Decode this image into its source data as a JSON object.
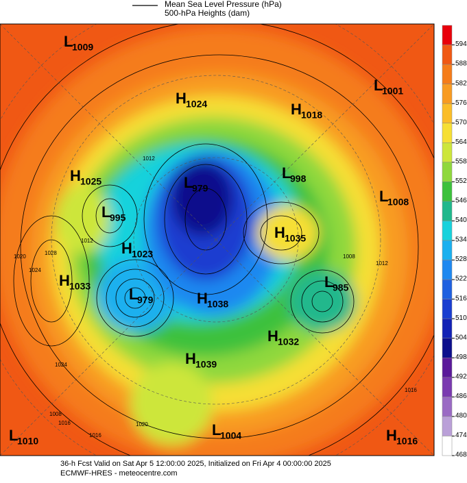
{
  "header": {
    "legend_line": "Mean Sea Level Pressure (hPa)",
    "legend_fill": "500-hPa Heights (dam)"
  },
  "colorbar": {
    "ticks": [
      594,
      588,
      582,
      576,
      570,
      564,
      558,
      552,
      546,
      540,
      534,
      528,
      522,
      516,
      510,
      504,
      498,
      492,
      486,
      480,
      474,
      468
    ],
    "colors": [
      "#e8000b",
      "#f05814",
      "#f57c1a",
      "#f89b22",
      "#fbbd28",
      "#f6df34",
      "#cde63b",
      "#8fd83d",
      "#3cc13c",
      "#20b88c",
      "#18d2dc",
      "#1ab0ef",
      "#1f88f0",
      "#1f60e0",
      "#1a3ed0",
      "#1222b5",
      "#0c0f8c",
      "#5a1a9a",
      "#7a3ab0",
      "#9a6ac4",
      "#baa0d8",
      "#ffffff"
    ]
  },
  "centers": [
    {
      "letter": "L",
      "value": 1009
    },
    {
      "letter": "H",
      "value": 1024
    },
    {
      "letter": "H",
      "value": 1018
    },
    {
      "letter": "L",
      "value": 1001
    },
    {
      "letter": "H",
      "value": 1025
    },
    {
      "letter": "L",
      "value": 979
    },
    {
      "letter": "L",
      "value": 998
    },
    {
      "letter": "L",
      "value": 1008
    },
    {
      "letter": "L",
      "value": 995
    },
    {
      "letter": "H",
      "value": 1035
    },
    {
      "letter": "H",
      "value": 1023
    },
    {
      "letter": "H",
      "value": 1033
    },
    {
      "letter": "L",
      "value": 979
    },
    {
      "letter": "H",
      "value": 1038
    },
    {
      "letter": "L",
      "value": 985
    },
    {
      "letter": "H",
      "value": 1032
    },
    {
      "letter": "H",
      "value": 1039
    },
    {
      "letter": "L",
      "value": 1010
    },
    {
      "letter": "L",
      "value": 1004
    },
    {
      "letter": "H",
      "value": 1016
    }
  ],
  "contour_labels": [
    1020,
    1028,
    1024,
    1012,
    1016,
    1008,
    1012,
    1016,
    1020,
    1024,
    1012,
    1016,
    1008
  ],
  "footer": {
    "line1": "36-h Fcst Valid on Sat Apr  5 12:00:00 2025, Initialized on Fri Apr  4 00:00:00 2025",
    "line2": "ECMWF-HRES  -  meteocentre.com"
  }
}
